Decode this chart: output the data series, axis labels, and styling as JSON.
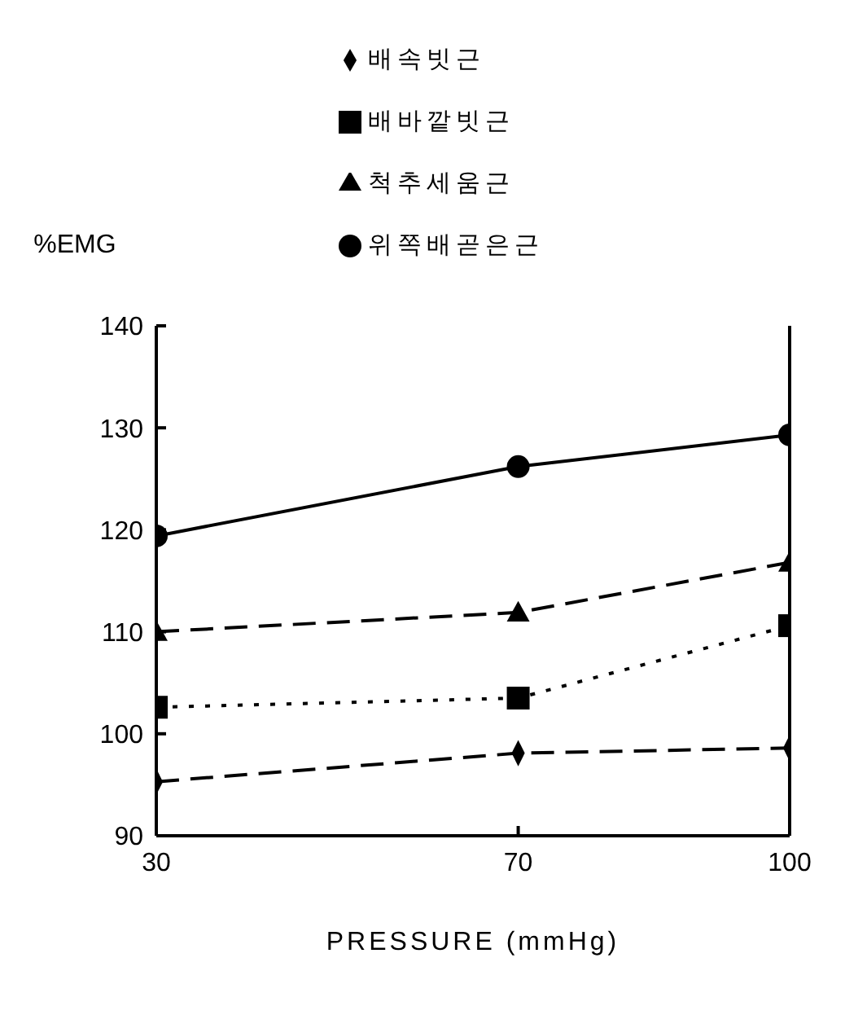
{
  "chart_data": {
    "type": "line",
    "xlabel": "PRESSURE (mmHg)",
    "ylabel": "%EMG",
    "x": [
      30,
      70,
      100
    ],
    "xlim": [
      30,
      100
    ],
    "xticks": [
      30,
      70,
      100
    ],
    "ylim": [
      90,
      140
    ],
    "yticks": [
      90,
      100,
      110,
      120,
      130,
      140
    ],
    "grid": false,
    "legend": "top",
    "series": [
      {
        "name": "배속빗근",
        "color": "#000000",
        "marker": "diamond",
        "line_style": "dashed",
        "values": [
          95.3,
          98.1,
          98.6
        ]
      },
      {
        "name": "배바깥빗근",
        "color": "#000000",
        "marker": "square",
        "line_style": "dotted",
        "values": [
          102.6,
          103.5,
          110.6
        ]
      },
      {
        "name": "척추세움근",
        "color": "#000000",
        "marker": "triangle",
        "line_style": "dashed",
        "values": [
          110,
          111.9,
          116.8
        ]
      },
      {
        "name": "위쪽배곧은근",
        "color": "#000000",
        "marker": "circle",
        "line_style": "solid",
        "values": [
          119.4,
          126.2,
          129.3
        ]
      }
    ]
  }
}
